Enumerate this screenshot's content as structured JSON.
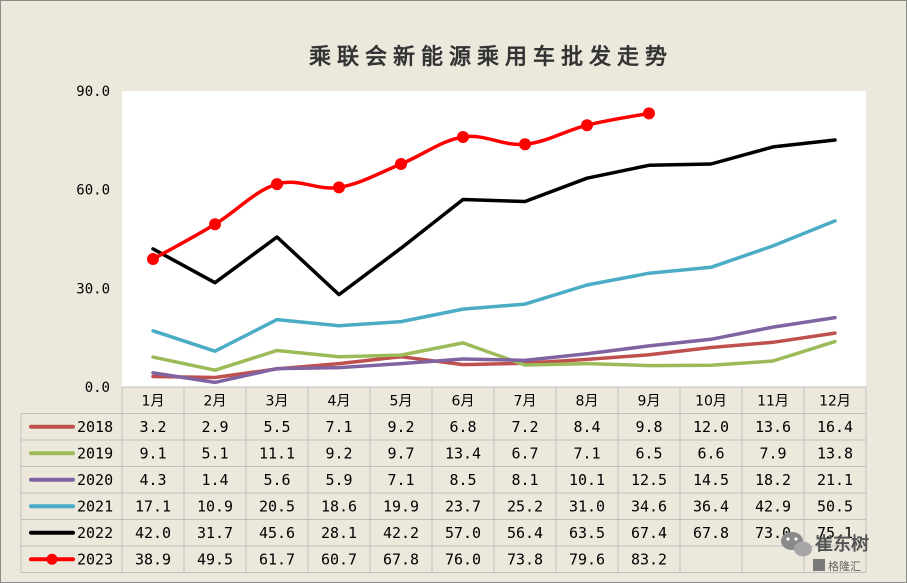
{
  "chart_data": {
    "type": "line",
    "title": "乘联会新能源乘用车批发走势",
    "categories": [
      "1月",
      "2月",
      "3月",
      "4月",
      "5月",
      "6月",
      "7月",
      "8月",
      "9月",
      "10月",
      "11月",
      "12月"
    ],
    "ylim": [
      0,
      90
    ],
    "yticks": [
      "0.0",
      "30.0",
      "60.0",
      "90.0"
    ],
    "ytick_values": [
      0,
      30,
      60,
      90
    ],
    "grid": false,
    "legend": "data-table-left",
    "series": [
      {
        "name": "2018",
        "color": "#c0504d",
        "marker": false,
        "values": [
          3.2,
          2.9,
          5.5,
          7.1,
          9.2,
          6.8,
          7.2,
          8.4,
          9.8,
          12.0,
          13.6,
          16.4
        ],
        "labels": [
          "3.2",
          "2.9",
          "5.5",
          "7.1",
          "9.2",
          "6.8",
          "7.2",
          "8.4",
          "9.8",
          "12.0",
          "13.6",
          "16.4"
        ]
      },
      {
        "name": "2019",
        "color": "#9bbb59",
        "marker": false,
        "values": [
          9.1,
          5.1,
          11.1,
          9.2,
          9.7,
          13.4,
          6.7,
          7.1,
          6.5,
          6.6,
          7.9,
          13.8
        ],
        "labels": [
          "9.1",
          "5.1",
          "11.1",
          "9.2",
          "9.7",
          "13.4",
          "6.7",
          "7.1",
          "6.5",
          "6.6",
          "7.9",
          "13.8"
        ]
      },
      {
        "name": "2020",
        "color": "#8064a2",
        "marker": false,
        "values": [
          4.3,
          1.4,
          5.6,
          5.9,
          7.1,
          8.5,
          8.1,
          10.1,
          12.5,
          14.5,
          18.2,
          21.1
        ],
        "labels": [
          "4.3",
          "1.4",
          "5.6",
          "5.9",
          "7.1",
          "8.5",
          "8.1",
          "10.1",
          "12.5",
          "14.5",
          "18.2",
          "21.1"
        ]
      },
      {
        "name": "2021",
        "color": "#4bacc6",
        "marker": false,
        "values": [
          17.1,
          10.9,
          20.5,
          18.6,
          19.9,
          23.7,
          25.2,
          31.0,
          34.6,
          36.4,
          42.9,
          50.5
        ],
        "labels": [
          "17.1",
          "10.9",
          "20.5",
          "18.6",
          "19.9",
          "23.7",
          "25.2",
          "31.0",
          "34.6",
          "36.4",
          "42.9",
          "50.5"
        ]
      },
      {
        "name": "2022",
        "color": "#000000",
        "marker": false,
        "values": [
          42.0,
          31.7,
          45.6,
          28.1,
          42.2,
          57.0,
          56.4,
          63.5,
          67.4,
          67.8,
          73.0,
          75.1
        ],
        "labels": [
          "42.0",
          "31.7",
          "45.6",
          "28.1",
          "42.2",
          "57.0",
          "56.4",
          "63.5",
          "67.4",
          "67.8",
          "73.0",
          "75.1"
        ]
      },
      {
        "name": "2023",
        "color": "#ff0000",
        "marker": true,
        "values": [
          38.9,
          49.5,
          61.7,
          60.7,
          67.8,
          76.0,
          73.8,
          79.6,
          83.2,
          null,
          null,
          null
        ],
        "labels": [
          "38.9",
          "49.5",
          "61.7",
          "60.7",
          "67.8",
          "76.0",
          "73.8",
          "79.6",
          "83.2",
          "",
          "",
          ""
        ]
      }
    ]
  },
  "watermark": {
    "name": "崔东树",
    "sub": "格隆汇"
  }
}
